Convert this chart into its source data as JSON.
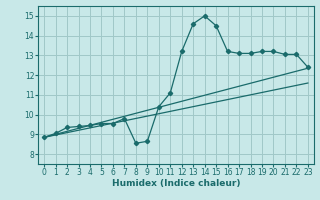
{
  "xlabel": "Humidex (Indice chaleur)",
  "xlim": [
    -0.5,
    23.5
  ],
  "ylim": [
    7.5,
    15.5
  ],
  "xticks": [
    0,
    1,
    2,
    3,
    4,
    5,
    6,
    7,
    8,
    9,
    10,
    11,
    12,
    13,
    14,
    15,
    16,
    17,
    18,
    19,
    20,
    21,
    22,
    23
  ],
  "yticks": [
    8,
    9,
    10,
    11,
    12,
    13,
    14,
    15
  ],
  "bg_color": "#c8e8e8",
  "grid_color": "#a0c8c8",
  "line_color": "#1a6b6b",
  "line1_x": [
    0,
    1,
    2,
    3,
    4,
    5,
    6,
    7,
    8,
    9,
    10,
    11,
    12,
    13,
    14,
    15,
    16,
    17,
    18,
    19,
    20,
    21,
    22,
    23
  ],
  "line1_y": [
    8.85,
    9.05,
    9.35,
    9.4,
    9.45,
    9.55,
    9.55,
    9.8,
    8.55,
    8.65,
    10.4,
    11.1,
    13.2,
    14.6,
    15.0,
    14.5,
    13.2,
    13.1,
    13.1,
    13.2,
    13.2,
    13.05,
    13.05,
    12.4
  ],
  "line2_x": [
    0,
    23
  ],
  "line2_y": [
    8.85,
    12.35
  ],
  "line3_x": [
    0,
    23
  ],
  "line3_y": [
    8.85,
    11.6
  ]
}
